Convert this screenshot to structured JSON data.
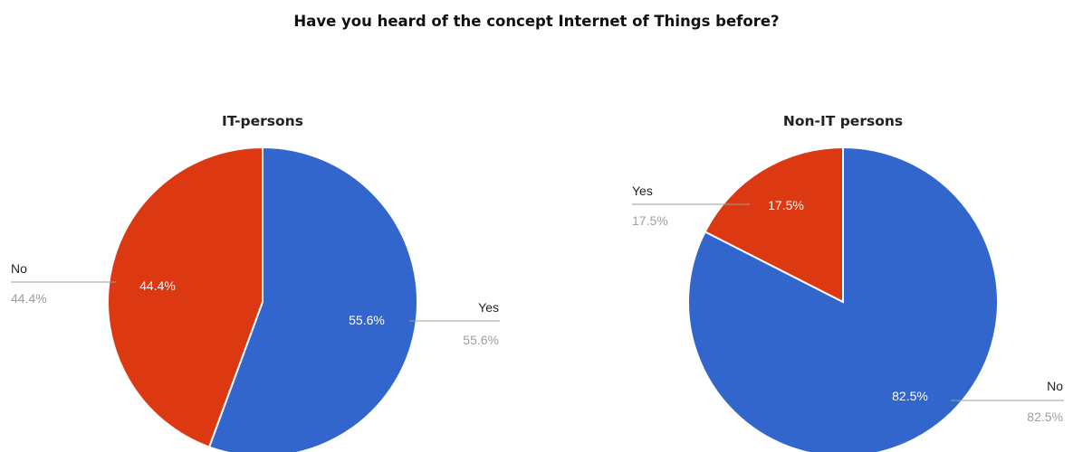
{
  "title": "Have you heard of the concept Internet of Things before?",
  "colors": {
    "blue": "#3366cc",
    "red": "#dc3912"
  },
  "chart_data": [
    {
      "type": "pie",
      "title": "IT-persons",
      "slices": [
        {
          "label": "Yes",
          "value": 55.6,
          "display": "55.6%",
          "color": "#3366cc"
        },
        {
          "label": "No",
          "value": 44.4,
          "display": "44.4%",
          "color": "#dc3912"
        }
      ],
      "legend": "labeled leader lines"
    },
    {
      "type": "pie",
      "title": "Non-IT persons",
      "slices": [
        {
          "label": "No",
          "value": 82.5,
          "display": "82.5%",
          "color": "#3366cc"
        },
        {
          "label": "Yes",
          "value": 17.5,
          "display": "17.5%",
          "color": "#dc3912"
        }
      ],
      "legend": "labeled leader lines"
    }
  ]
}
